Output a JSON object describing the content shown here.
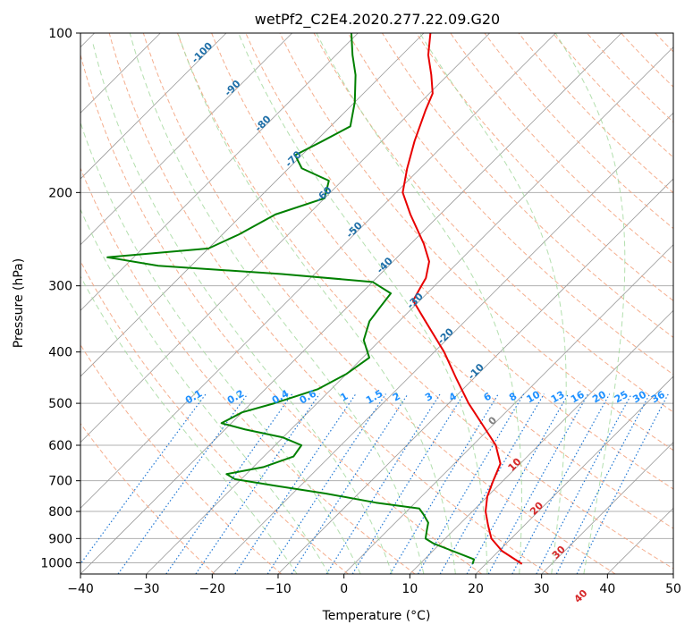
{
  "chart_data": {
    "type": "line",
    "subtype": "skew-t log-p",
    "title": "wetPf2_C2E4.2020.277.22.09.G20",
    "xlabel": "Temperature (°C)",
    "ylabel": "Pressure (hPa)",
    "xlim": [
      -40,
      50
    ],
    "ylim": [
      1050,
      100
    ],
    "x_ticks": [
      -40,
      -30,
      -20,
      -10,
      0,
      10,
      20,
      30,
      40,
      50
    ],
    "x_tick_labels": [
      "−40",
      "−30",
      "−20",
      "−10",
      "0",
      "10",
      "20",
      "30",
      "40",
      "50"
    ],
    "y_ticks": [
      1000,
      900,
      800,
      700,
      600,
      500,
      400,
      300,
      200,
      100
    ],
    "y_tick_labels": [
      "1000",
      "900",
      "800",
      "700",
      "600",
      "500",
      "400",
      "300",
      "200",
      "100"
    ],
    "series": [
      {
        "name": "temperature",
        "color": "#e80000",
        "points": [
          [
            1005,
            25.5
          ],
          [
            950,
            20.5
          ],
          [
            900,
            17.0
          ],
          [
            850,
            14.5
          ],
          [
            800,
            12.0
          ],
          [
            750,
            10.0
          ],
          [
            700,
            8.5
          ],
          [
            650,
            7.0
          ],
          [
            600,
            3.5
          ],
          [
            550,
            -1.5
          ],
          [
            500,
            -7.0
          ],
          [
            450,
            -12.5
          ],
          [
            400,
            -18.5
          ],
          [
            350,
            -26.0
          ],
          [
            320,
            -31.0
          ],
          [
            300,
            -32.0
          ],
          [
            290,
            -32.5
          ],
          [
            270,
            -34.5
          ],
          [
            250,
            -38.0
          ],
          [
            220,
            -44.5
          ],
          [
            200,
            -49.0
          ],
          [
            180,
            -52.0
          ],
          [
            160,
            -55.0
          ],
          [
            140,
            -58.0
          ],
          [
            130,
            -59.5
          ],
          [
            120,
            -62.5
          ],
          [
            110,
            -66.0
          ],
          [
            100,
            -69.0
          ]
        ]
      },
      {
        "name": "dewpoint",
        "color": "#008000",
        "points": [
          [
            1005,
            18.0
          ],
          [
            985,
            17.5
          ],
          [
            950,
            13.0
          ],
          [
            920,
            9.0
          ],
          [
            900,
            7.0
          ],
          [
            870,
            6.0
          ],
          [
            840,
            5.0
          ],
          [
            810,
            3.0
          ],
          [
            790,
            1.5
          ],
          [
            770,
            -6.0
          ],
          [
            740,
            -15.0
          ],
          [
            715,
            -24.0
          ],
          [
            695,
            -31.0
          ],
          [
            680,
            -33.0
          ],
          [
            660,
            -28.5
          ],
          [
            630,
            -25.5
          ],
          [
            600,
            -26.0
          ],
          [
            580,
            -30.0
          ],
          [
            560,
            -37.0
          ],
          [
            545,
            -41.5
          ],
          [
            520,
            -40.0
          ],
          [
            500,
            -36.5
          ],
          [
            470,
            -32.0
          ],
          [
            440,
            -30.0
          ],
          [
            410,
            -29.0
          ],
          [
            380,
            -32.5
          ],
          [
            350,
            -34.5
          ],
          [
            330,
            -35.0
          ],
          [
            310,
            -35.5
          ],
          [
            295,
            -40.0
          ],
          [
            285,
            -55.0
          ],
          [
            275,
            -75.0
          ],
          [
            265,
            -84.0
          ],
          [
            255,
            -70.0
          ],
          [
            240,
            -67.5
          ],
          [
            220,
            -65.0
          ],
          [
            205,
            -60.0
          ],
          [
            190,
            -62.0
          ],
          [
            180,
            -68.0
          ],
          [
            170,
            -71.0
          ],
          [
            160,
            -69.0
          ],
          [
            150,
            -67.0
          ],
          [
            135,
            -70.0
          ],
          [
            120,
            -74.0
          ],
          [
            110,
            -77.5
          ],
          [
            100,
            -81.0
          ]
        ]
      }
    ],
    "dry_adiabats_K": [
      250,
      260,
      270,
      280,
      290,
      300,
      310,
      320,
      330,
      340,
      350,
      360,
      370,
      380,
      390,
      400,
      410,
      420,
      430,
      440,
      450,
      460,
      470
    ],
    "moist_adiabats_C": [
      -10,
      -5,
      0,
      5,
      10,
      15,
      20,
      25,
      30,
      35
    ],
    "isotherm_labels": [
      {
        "temp": -100,
        "label": "-100"
      },
      {
        "temp": -90,
        "label": "-90"
      },
      {
        "temp": -80,
        "label": "-80"
      },
      {
        "temp": -70,
        "label": "-70"
      },
      {
        "temp": -60,
        "label": "-60"
      },
      {
        "temp": -50,
        "label": "-50"
      },
      {
        "temp": -40,
        "label": "-40"
      },
      {
        "temp": -30,
        "label": "-30"
      },
      {
        "temp": -20,
        "label": "-20"
      },
      {
        "temp": -10,
        "label": "-10"
      }
    ],
    "isotherm_labels_lower": [
      {
        "temp": 0,
        "label": "0",
        "color": "#808080"
      },
      {
        "temp": 10,
        "label": "10",
        "color": "#d62728"
      },
      {
        "temp": 20,
        "label": "20",
        "color": "#d62728"
      },
      {
        "temp": 30,
        "label": "30",
        "color": "#d62728"
      },
      {
        "temp": 40,
        "label": "40",
        "color": "#d62728"
      }
    ],
    "mixing_ratio_lines_gkg": [
      {
        "value": 0.1,
        "label": "0.1"
      },
      {
        "value": 0.2,
        "label": "0.2"
      },
      {
        "value": 0.4,
        "label": "0.4"
      },
      {
        "value": 0.6,
        "label": "0.6"
      },
      {
        "value": 1,
        "label": "1"
      },
      {
        "value": 1.5,
        "label": "1.5"
      },
      {
        "value": 2,
        "label": "2"
      },
      {
        "value": 3,
        "label": "3"
      },
      {
        "value": 4,
        "label": "4"
      },
      {
        "value": 6,
        "label": "6"
      },
      {
        "value": 8,
        "label": "8"
      },
      {
        "value": 10,
        "label": "10"
      },
      {
        "value": 13,
        "label": "13"
      },
      {
        "value": 16,
        "label": "16"
      },
      {
        "value": 20,
        "label": "20"
      },
      {
        "value": 25,
        "label": "25"
      },
      {
        "value": 30,
        "label": "30"
      },
      {
        "value": 36,
        "label": "36"
      }
    ],
    "colors": {
      "grid": "#b0b0b0",
      "isotherm": "#9a9a9a",
      "dry_adiabat": "#f4a582",
      "moist_adiabat": "#a6d9a0",
      "mixing_ratio": "#1f77d4",
      "isotherm_label": "#1f6fa8",
      "mixing_label": "#1e90ff",
      "temperature": "#e80000",
      "dewpoint": "#008000"
    }
  }
}
